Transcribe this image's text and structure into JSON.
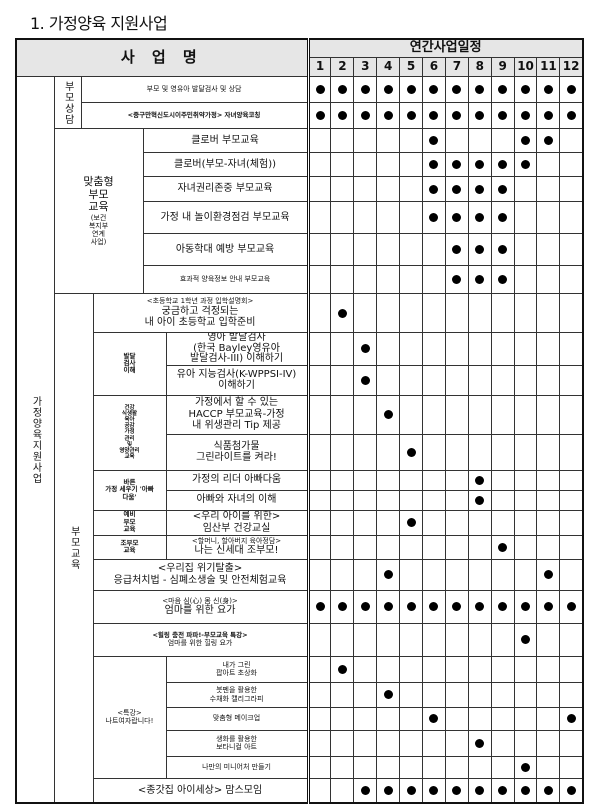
{
  "page_title": "1. 가정양육 지원사업",
  "header": {
    "name": "사 업 명",
    "schedule": "연간사업일정",
    "months": [
      "1",
      "2",
      "3",
      "4",
      "5",
      "6",
      "7",
      "8",
      "9",
      "10",
      "11",
      "12"
    ]
  },
  "main_category": "가정양육지원사업",
  "sections": {
    "counsel": "부모상담",
    "custom": {
      "title": "맞춤형\n부모\n교육",
      "note": "(보건\n복지부\n연계\n사업)"
    },
    "edu": "부모교육",
    "dev": "발달\n검사\n이해",
    "health": "건강\n식생활\n육아\n공감\n가정\n관리\n및\n영양관리\n교육",
    "dad": "바른\n가정 세우기 '아빠\n다움'",
    "prenatal": "예비\n부모\n교육",
    "grand": "조부모\n교육",
    "special": "<특강>\n나트여자랍니다!"
  },
  "rows": [
    {
      "label": "부모 및 영유아 발달검사 및 상담",
      "months": [
        1,
        2,
        3,
        4,
        5,
        6,
        7,
        8,
        9,
        10,
        11,
        12
      ]
    },
    {
      "label": "<중구만혁신도시이주민취약가정> 자녀양육코칭",
      "months": [
        1,
        2,
        3,
        4,
        5,
        6,
        7,
        8,
        9,
        10,
        11,
        12
      ]
    },
    {
      "label": "클로버 부모교육",
      "months": [
        6,
        10,
        11
      ]
    },
    {
      "label": "클로버(부모-자녀(체험))",
      "months": [
        6,
        7,
        8,
        9,
        10
      ]
    },
    {
      "label": "자녀권리존중 부모교육",
      "months": [
        6,
        7,
        8,
        9
      ]
    },
    {
      "label": "가정 내 놀이환경점검 부모교육",
      "months": [
        6,
        7,
        8,
        9
      ]
    },
    {
      "label": "아동학대 예방 부모교육",
      "months": [
        7,
        8,
        9
      ]
    },
    {
      "label": "효과적 양육정보 안내 부모교육",
      "months": [
        7,
        8,
        9
      ]
    },
    {
      "label_sub": "<초등학교 1학년 과정 입학설명회>",
      "label": "궁금하고 걱정되는\n내 아이 초등학교 입학준비",
      "months": [
        2
      ]
    },
    {
      "label": "영아 발달검사\n(한국 Bayley영유아\n발달검사-III) 이해하기",
      "months": [
        3
      ]
    },
    {
      "label": "유아 지능검사(K-WPPSI-IV)\n이해하기",
      "months": [
        3
      ]
    },
    {
      "label": "가정에서 할 수 있는\nHACCP 부모교육-가정\n내 위생관리 Tip 제공",
      "months": [
        4
      ]
    },
    {
      "label": "식품첨가물\n그린라이트를 켜라!",
      "months": [
        5
      ]
    },
    {
      "label": "가정의 리더 아빠다움",
      "months": [
        8
      ]
    },
    {
      "label": "아빠와 자녀의 이해",
      "months": [
        8
      ]
    },
    {
      "label": "<우리 아이를 위한>\n임산부 건강교실",
      "months": [
        5
      ]
    },
    {
      "label_sub": "<할머니, 할아버지 육아정담>",
      "label": "나는 신세대 조부모!",
      "months": [
        9
      ]
    },
    {
      "label": "<우리집 위기탈출>\n응급처치법 - 심폐소생술 및 안전체험교육",
      "months": [
        4,
        11
      ]
    },
    {
      "label_sub": "<마음 심(心) 몸 신(身)>",
      "label": "엄마를 위한 요가",
      "months": [
        1,
        2,
        3,
        4,
        5,
        6,
        7,
        8,
        9,
        10,
        11,
        12
      ]
    },
    {
      "label_sub": "<힐링 충전 파파!-부모교육 특강>",
      "label": "엄마를 위한 힐링 요가",
      "months": [
        10
      ]
    },
    {
      "label": "내가 그린\n팝아트 초상화",
      "months": [
        2
      ]
    },
    {
      "label": "붓펜을 활용한\n수채화 캘리그라피",
      "months": [
        4
      ]
    },
    {
      "label": "맞춤형 메이크업",
      "months": [
        6,
        12
      ]
    },
    {
      "label": "생화를 활용한\n보타니컬 아트",
      "months": [
        8
      ]
    },
    {
      "label": "나만의 미니어처 만들기",
      "months": [
        10
      ]
    },
    {
      "label": "<종갓집 아이세상> 맘스모임",
      "months": [
        3,
        4,
        5,
        6,
        7,
        8,
        9,
        10,
        11,
        12
      ]
    }
  ]
}
